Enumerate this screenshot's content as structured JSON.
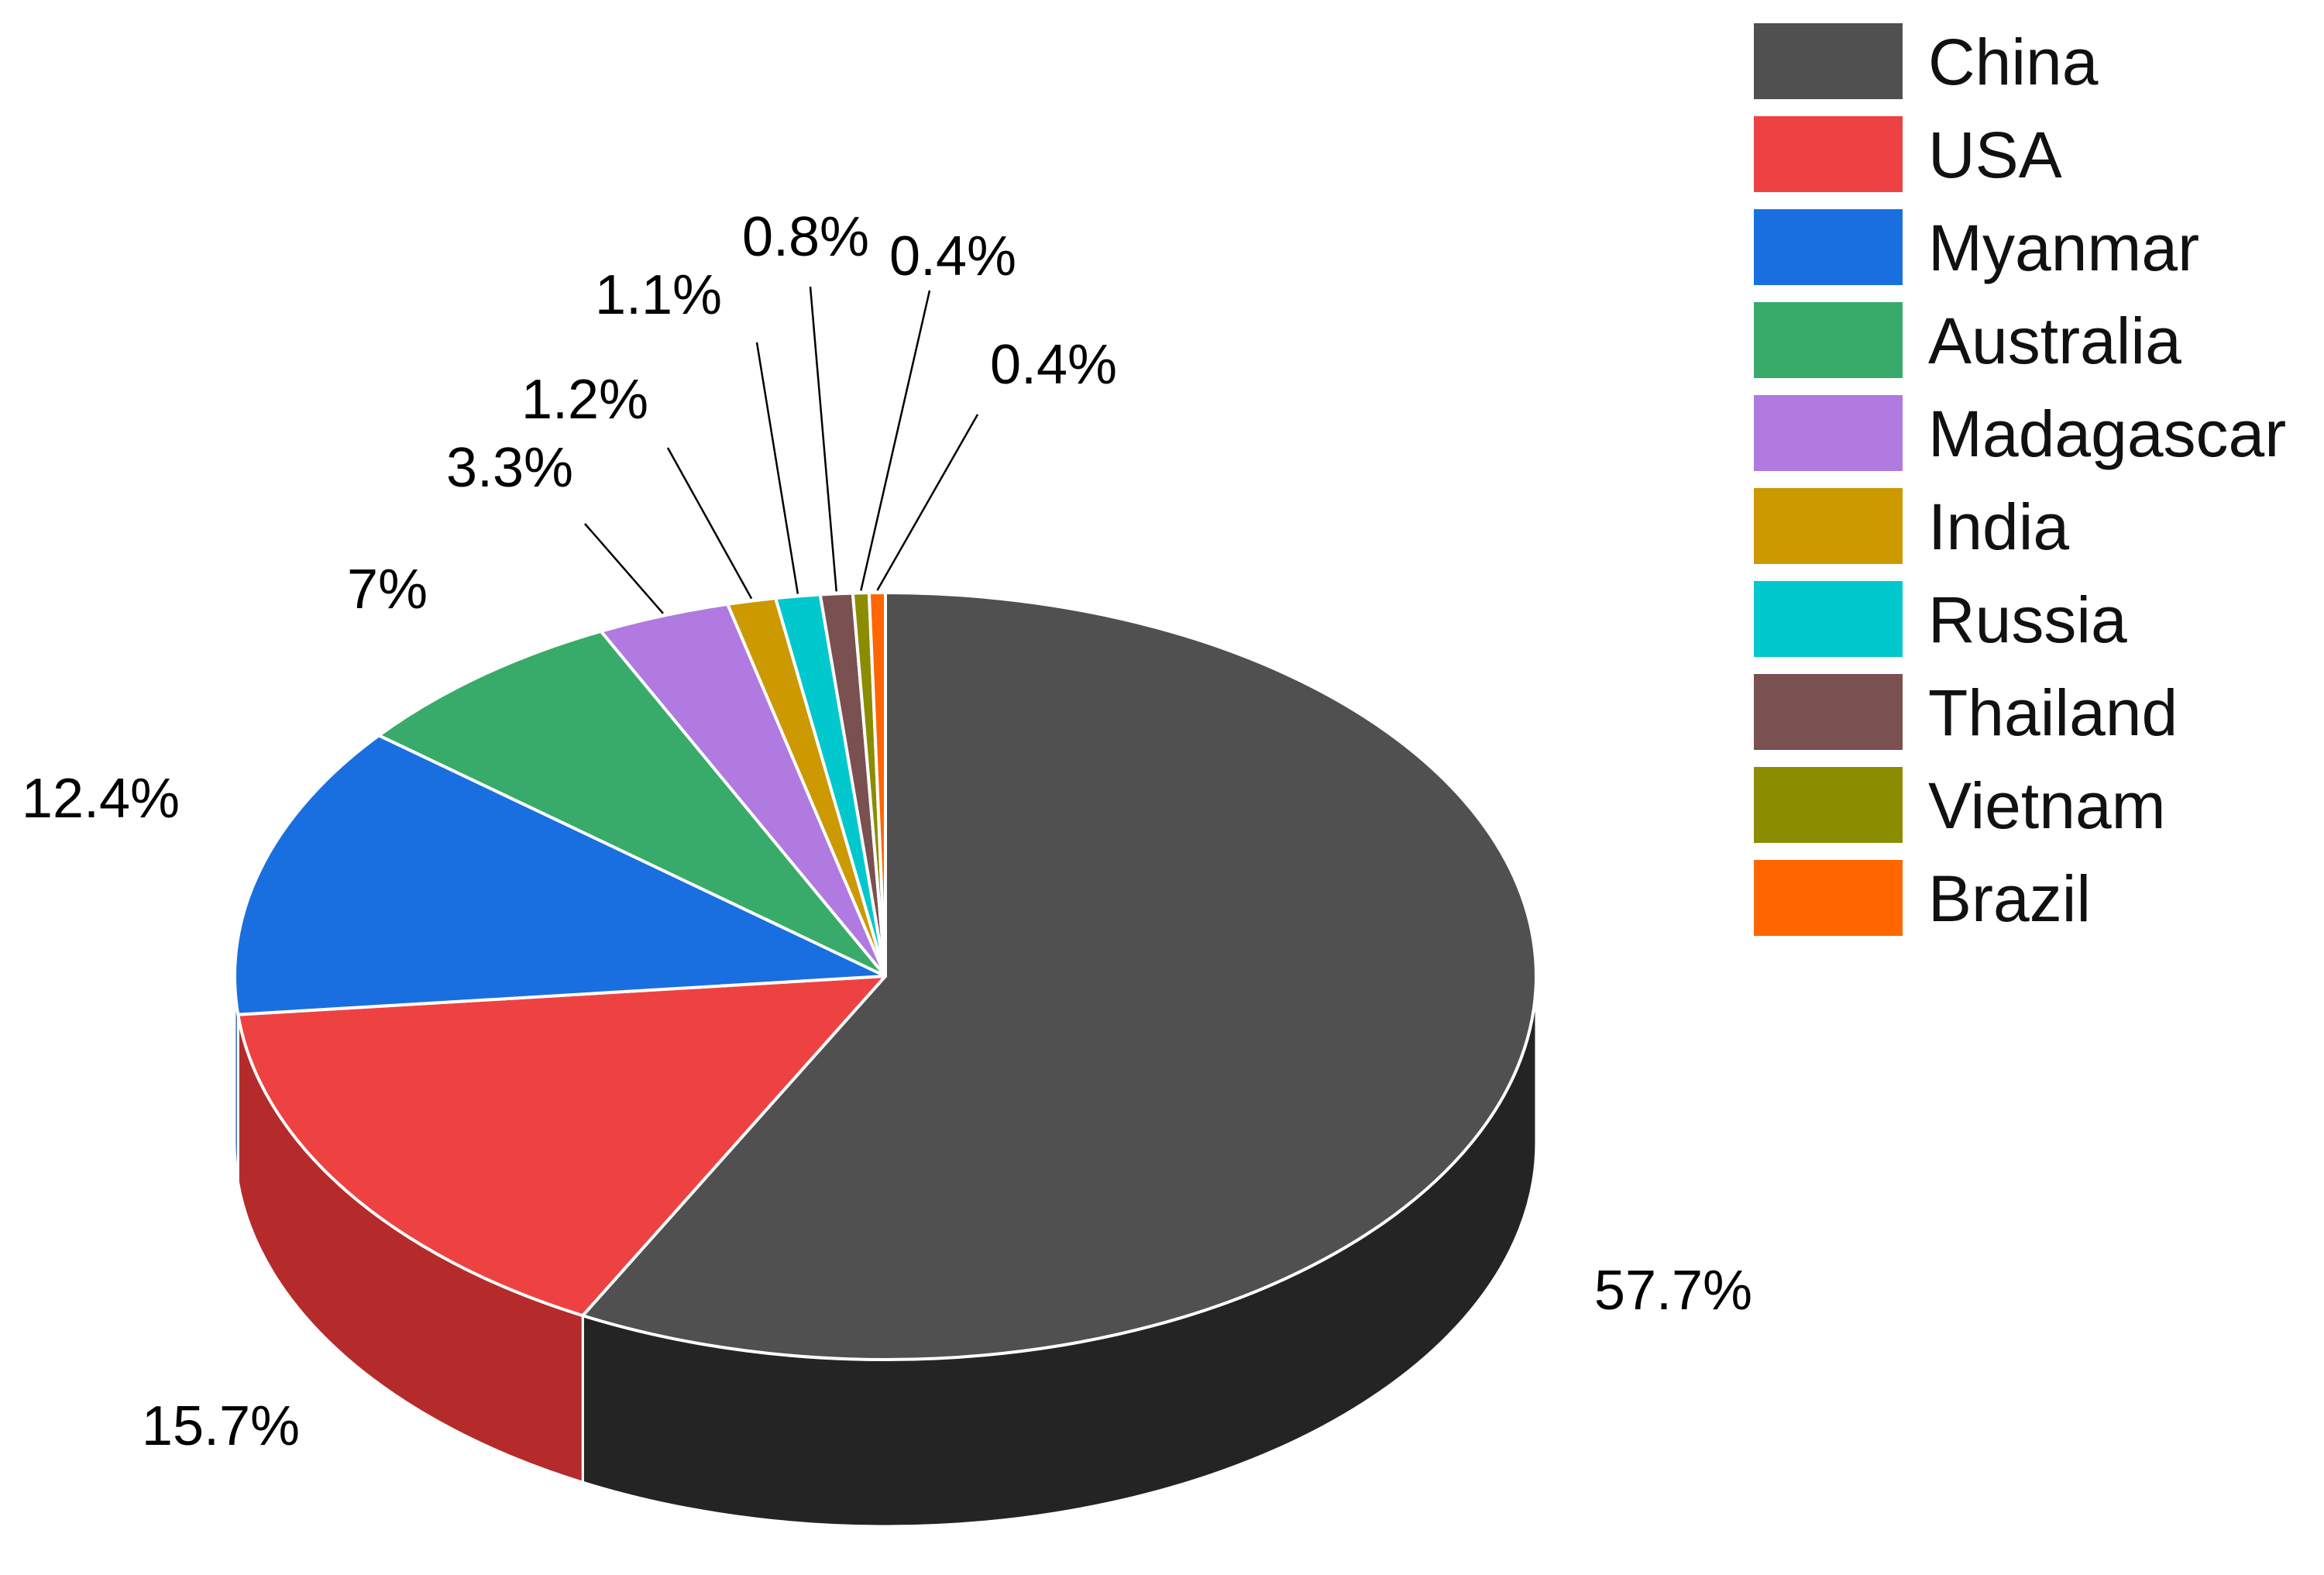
{
  "chart_data": {
    "type": "pie",
    "style": "3d",
    "start": "12 o'clock, clockwise",
    "legend": "top-right",
    "slices": [
      {
        "label": "China",
        "value": 57.7,
        "display": "57.7%",
        "color": "#505050",
        "side_color": "#242424"
      },
      {
        "label": "USA",
        "value": 15.7,
        "display": "15.7%",
        "color": "#ee4242",
        "side_color": "#b52b2b"
      },
      {
        "label": "Myanmar",
        "value": 12.4,
        "display": "12.4%",
        "color": "#1a6fe0",
        "side_color": "#124fa8"
      },
      {
        "label": "Australia",
        "value": 7.0,
        "display": "7%",
        "color": "#38ab6a",
        "side_color": "#26804d"
      },
      {
        "label": "Madagascar",
        "value": 3.3,
        "display": "3.3%",
        "color": "#b07ae0",
        "side_color": "#8458ac"
      },
      {
        "label": "India",
        "value": 1.2,
        "display": "1.2%",
        "color": "#cc9900",
        "side_color": "#997300"
      },
      {
        "label": "Russia",
        "value": 1.1,
        "display": "1.1%",
        "color": "#00c8cc",
        "side_color": "#009699"
      },
      {
        "label": "Thailand",
        "value": 0.8,
        "display": "0.8%",
        "color": "#7b5050",
        "side_color": "#5a3a3a"
      },
      {
        "label": "Vietnam",
        "value": 0.4,
        "display": "0.4%",
        "color": "#8c8c00",
        "side_color": "#666600"
      },
      {
        "label": "Brazil",
        "value": 0.4,
        "display": "0.4%",
        "color": "#ff6600",
        "side_color": "#c24e00"
      }
    ]
  }
}
